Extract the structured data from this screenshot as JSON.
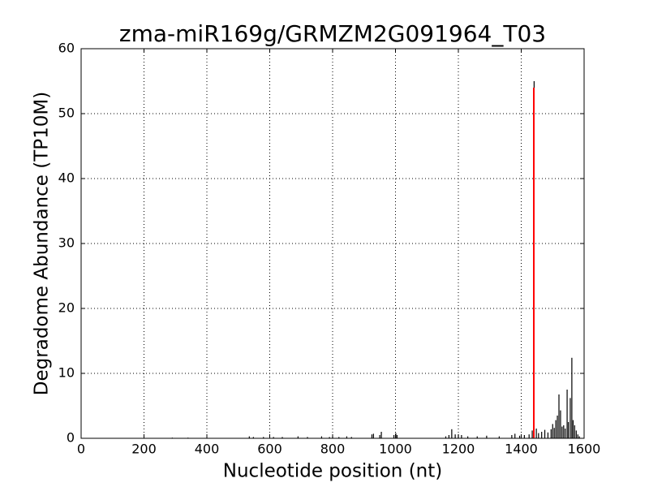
{
  "chart_data": {
    "type": "spike",
    "title": "zma-miR169g/GRMZM2G091964_T03",
    "x_label": "Nucleotide position (nt)",
    "y_label": "Degradome Abundance (TP10M)",
    "xlim": [
      0,
      1600
    ],
    "xticks": [
      0,
      200,
      400,
      600,
      800,
      1000,
      1200,
      1400,
      1600
    ],
    "ylim": [
      0,
      60
    ],
    "yticks": [
      0,
      10,
      20,
      30,
      40,
      50,
      60
    ],
    "grid": true,
    "series": [
      {
        "color": "#000000",
        "x": [
          290,
          340,
          535,
          548,
          580,
          612,
          640,
          690,
          720,
          765,
          790,
          800,
          820,
          845,
          860,
          925,
          930,
          950,
          955,
          995,
          1001,
          1005,
          1160,
          1170,
          1179,
          1190,
          1200,
          1210,
          1230,
          1260,
          1290,
          1330,
          1370,
          1380,
          1395,
          1410,
          1425,
          1435,
          1441,
          1448,
          1455,
          1465,
          1475,
          1485,
          1495,
          1500,
          1505,
          1510,
          1515,
          1520,
          1525,
          1530,
          1535,
          1540,
          1546,
          1550,
          1556,
          1561,
          1565,
          1570,
          1575,
          1580,
          1585
        ],
        "values": [
          0.1,
          0.1,
          0.3,
          0.2,
          0.2,
          0.2,
          0.2,
          0.3,
          0.2,
          0.3,
          0.2,
          0.3,
          0.2,
          0.3,
          0.2,
          0.6,
          0.7,
          0.5,
          1.0,
          0.5,
          0.8,
          0.5,
          0.3,
          0.5,
          1.4,
          0.6,
          0.6,
          0.5,
          0.3,
          0.3,
          0.4,
          0.3,
          0.5,
          0.7,
          0.4,
          0.5,
          0.6,
          1.2,
          55,
          1.5,
          0.8,
          1.0,
          1.3,
          0.9,
          1.4,
          2.2,
          1.6,
          2.8,
          3.5,
          6.75,
          4.3,
          1.8,
          2.0,
          1.5,
          7.5,
          2.5,
          6.2,
          12.4,
          2.8,
          2.0,
          1.2,
          0.6,
          0.3
        ]
      },
      {
        "color": "#ff0000",
        "x": [
          1440
        ],
        "values": [
          54
        ]
      }
    ]
  }
}
